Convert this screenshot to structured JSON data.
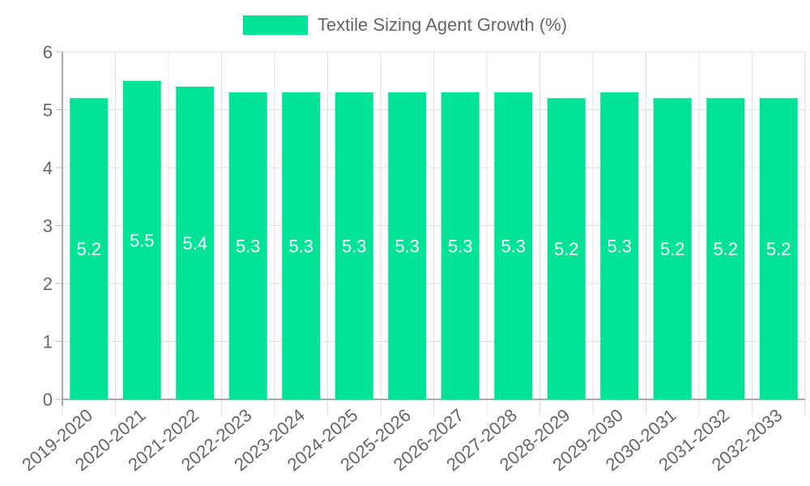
{
  "chart_data": {
    "type": "bar",
    "title": "",
    "legend": [
      "Textile Sizing Agent Growth (%)"
    ],
    "legend_position": "top",
    "categories": [
      "2019-2020",
      "2020-2021",
      "2021-2022",
      "2022-2023",
      "2023-2024",
      "2024-2025",
      "2025-2026",
      "2026-2027",
      "2027-2028",
      "2028-2029",
      "2029-2030",
      "2030-2031",
      "2031-2032",
      "2032-2033"
    ],
    "series": [
      {
        "name": "Textile Sizing Agent Growth (%)",
        "values": [
          5.2,
          5.5,
          5.4,
          5.3,
          5.3,
          5.3,
          5.3,
          5.3,
          5.3,
          5.2,
          5.3,
          5.2,
          5.2,
          5.2
        ],
        "color": "#00e396"
      }
    ],
    "xlabel": "",
    "ylabel": "",
    "ylim": [
      0,
      6
    ],
    "yticks": [
      0,
      1,
      2,
      3,
      4,
      5,
      6
    ],
    "grid": true,
    "data_labels": true
  },
  "legend": {
    "label": "Textile Sizing Agent Growth (%)",
    "color": "#00e396"
  }
}
